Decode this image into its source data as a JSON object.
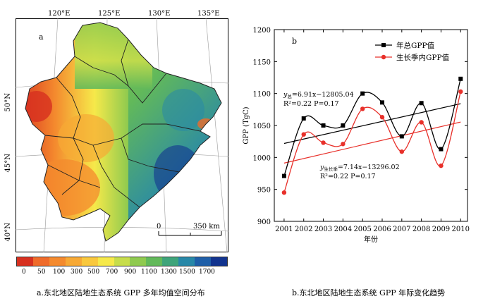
{
  "map": {
    "panel_label": "a",
    "lon_labels": [
      "120°E",
      "125°E",
      "130°E",
      "135°E"
    ],
    "lat_labels": [
      "50°N",
      "45°N",
      "40°N"
    ],
    "scale_start": "0",
    "scale_end": "350 km",
    "legend": {
      "colors": [
        "#d7301f",
        "#ef6b2a",
        "#f48a2e",
        "#f7a935",
        "#f9c83d",
        "#f6e94a",
        "#c7dd4b",
        "#8fca4f",
        "#62b95a",
        "#3ea47a",
        "#2888a8",
        "#1f5fa8",
        "#12348f"
      ],
      "ticks": [
        "0",
        "50",
        "100",
        "300",
        "500",
        "700",
        "900",
        "1100",
        "1300",
        "1500",
        "1700"
      ]
    },
    "caption": "a.东北地区陆地生态系统 GPP 多年均值空间分布"
  },
  "chart_data": {
    "type": "line",
    "panel_label": "b",
    "x": [
      2001,
      2002,
      2003,
      2004,
      2005,
      2006,
      2007,
      2008,
      2009,
      2010
    ],
    "x_tick_labels": [
      "2001",
      "2002",
      "2003",
      "2004",
      "2005",
      "2006",
      "2007",
      "2008",
      "2009",
      "2010"
    ],
    "xlabel": "年份",
    "ylabel": "GPP (TgC)",
    "ylim": [
      900,
      1200
    ],
    "y_ticks": [
      900,
      950,
      1000,
      1050,
      1100,
      1150,
      1200
    ],
    "y_tick_labels": [
      "900",
      "950",
      "1000",
      "1050",
      "1100",
      "1150",
      "1200"
    ],
    "series": [
      {
        "name": "年总GPP值",
        "color": "#000000",
        "marker": "square",
        "values": [
          971,
          1061,
          1050,
          1050,
          1100,
          1086,
          1033,
          1085,
          1013,
          1123
        ]
      },
      {
        "name": "生长季内GPP值",
        "color": "#e8302a",
        "marker": "circle",
        "values": [
          945,
          1036,
          1023,
          1021,
          1076,
          1063,
          1009,
          1055,
          987,
          1103
        ]
      }
    ],
    "trend_lines": [
      {
        "color": "#000000",
        "slope": 6.91,
        "intercept": -12805.04
      },
      {
        "color": "#e8302a",
        "slope": 7.14,
        "intercept": -13296.02
      }
    ],
    "annotations": {
      "eq1_y": "y",
      "eq1_sub": "总",
      "eq1_rest": "=6.91x−12805.04",
      "eq1_stats": "R²=0.22   P=0.17",
      "eq2_y": "y",
      "eq2_sub": "生长季",
      "eq2_rest": "=7.14x−13296.02",
      "eq2_stats": "R²=0.22   P=0.17"
    },
    "legend_position": "top-right",
    "caption": "b.东北地区陆地生态系统 GPP 年际变化趋势"
  }
}
